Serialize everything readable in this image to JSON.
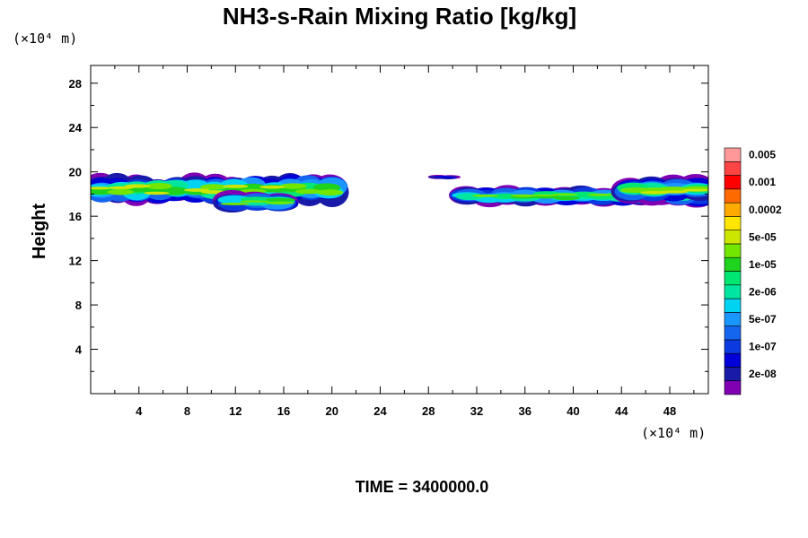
{
  "chart_data": {
    "type": "heatmap",
    "title": "NH3-s-Rain Mixing Ratio [kg/kg]",
    "ylabel": "Height",
    "x_unit": "(×10⁴ m)",
    "y_unit": "(×10⁴ m)",
    "footer": "TIME = 3400000.0",
    "xlim": [
      0,
      51.2
    ],
    "ylim": [
      0,
      29.6
    ],
    "x_ticks": [
      4,
      8,
      12,
      16,
      20,
      24,
      28,
      32,
      36,
      40,
      44,
      48
    ],
    "x_tick_labels": [
      "4",
      "8",
      "12",
      "16",
      "20",
      "24",
      "28",
      "32",
      "36",
      "40",
      "44",
      "48"
    ],
    "y_ticks": [
      4,
      8,
      12,
      16,
      20,
      24,
      28
    ],
    "y_tick_labels": [
      "4",
      "8",
      "12",
      "16",
      "20",
      "24",
      "28"
    ],
    "colorbar": {
      "colors": [
        "#7f00b3",
        "#1a1aa8",
        "#0000d8",
        "#0a3ae0",
        "#1566ee",
        "#1a96ff",
        "#00d2f2",
        "#00e6a0",
        "#00e673",
        "#1ed21e",
        "#73e600",
        "#cce600",
        "#ffe600",
        "#ffaa00",
        "#ff6a00",
        "#ff0000",
        "#ff4444",
        "#ff9999"
      ],
      "labels": [
        "2e-08",
        "1e-07",
        "5e-07",
        "2e-06",
        "1e-05",
        "5e-05",
        "0.0002",
        "0.001",
        "0.005"
      ]
    },
    "bands": [
      {
        "x0": 0,
        "x1": 20.6,
        "y_center": 18.4,
        "thickness": 2.6,
        "peak_level": 11
      },
      {
        "x0": 11,
        "x1": 16.5,
        "y_center": 17.3,
        "thickness": 1.8,
        "peak_level": 10
      },
      {
        "x0": 30.5,
        "x1": 51.2,
        "y_center": 17.8,
        "thickness": 1.6,
        "peak_level": 10
      },
      {
        "x0": 44,
        "x1": 51.2,
        "y_center": 18.4,
        "thickness": 2.2,
        "peak_level": 11
      },
      {
        "x0": 28.5,
        "x1": 30.2,
        "y_center": 19.5,
        "thickness": 0.4,
        "peak_level": 2
      }
    ]
  }
}
